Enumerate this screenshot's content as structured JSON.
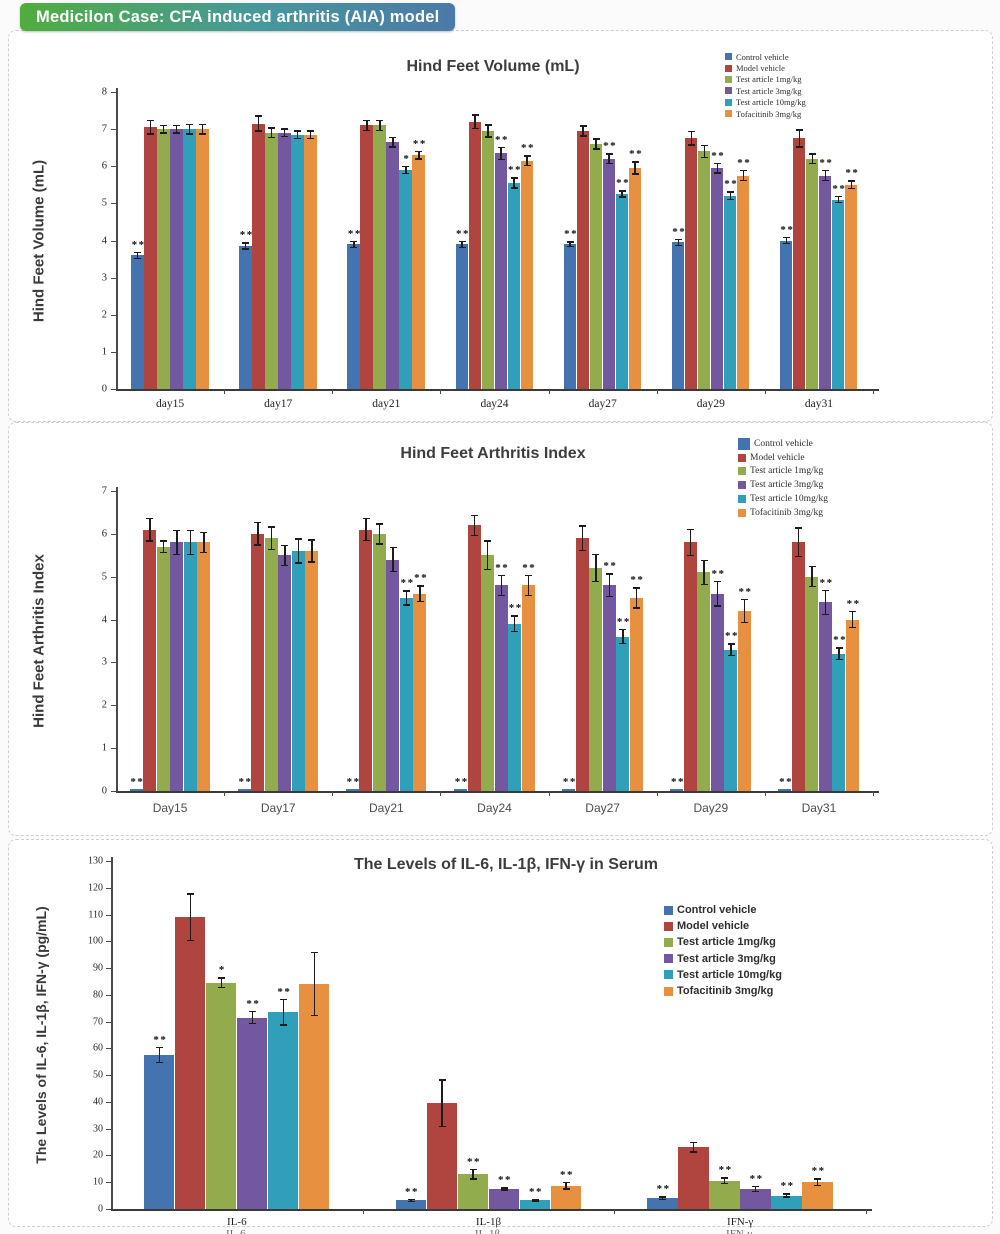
{
  "banner": {
    "text": "Medicilon Case: CFA induced arthritis (AIA) model"
  },
  "palette": {
    "control": "#4474b0",
    "model": "#b04540",
    "test1": "#92ac4d",
    "test3": "#73589f",
    "test10": "#2f9fba",
    "tofacitinib": "#e79140",
    "banner_green": "#4fad3e",
    "banner_blue": "#4b79a8"
  },
  "chart_data": [
    {
      "type": "bar",
      "title": "Hind Feet Volume (mL)",
      "ylabel": "Hind Feet Volume (mL)",
      "ylim": [
        0,
        8
      ],
      "ystep": 1,
      "grid": false,
      "legend_position": "top-right",
      "categories": [
        "day15",
        "day17",
        "day21",
        "day24",
        "day27",
        "day29",
        "day31"
      ],
      "series": [
        {
          "name": "Control vehicle",
          "color": "#4474b0",
          "values": [
            3.6,
            3.85,
            3.9,
            3.9,
            3.9,
            3.95,
            4.0
          ],
          "errors": [
            0.1,
            0.1,
            0.1,
            0.1,
            0.08,
            0.1,
            0.1
          ],
          "sig": [
            "**",
            "**",
            "**",
            "**",
            "**",
            "**",
            "**"
          ]
        },
        {
          "name": "Model vehicle",
          "color": "#b04540",
          "values": [
            7.05,
            7.15,
            7.1,
            7.2,
            6.95,
            6.75,
            6.75
          ],
          "errors": [
            0.2,
            0.22,
            0.15,
            0.2,
            0.15,
            0.2,
            0.25
          ],
          "sig": [
            "",
            "",
            "",
            "",
            "",
            "",
            ""
          ]
        },
        {
          "name": "Test article 1mg/kg",
          "color": "#92ac4d",
          "values": [
            7.0,
            6.9,
            7.1,
            6.95,
            6.6,
            6.4,
            6.2
          ],
          "errors": [
            0.12,
            0.15,
            0.15,
            0.18,
            0.15,
            0.18,
            0.15
          ],
          "sig": [
            "",
            "",
            "",
            "",
            "",
            "",
            ""
          ]
        },
        {
          "name": "Test article 3mg/kg",
          "color": "#73589f",
          "values": [
            7.0,
            6.9,
            6.65,
            6.35,
            6.2,
            5.95,
            5.75
          ],
          "errors": [
            0.12,
            0.12,
            0.15,
            0.18,
            0.15,
            0.15,
            0.15
          ],
          "sig": [
            "",
            "",
            "",
            "**",
            "**",
            "**",
            "**"
          ]
        },
        {
          "name": "Test article 10mg/kg",
          "color": "#2f9fba",
          "values": [
            7.0,
            6.85,
            5.9,
            5.55,
            5.25,
            5.2,
            5.1
          ],
          "errors": [
            0.15,
            0.12,
            0.12,
            0.15,
            0.1,
            0.12,
            0.1
          ],
          "sig": [
            "",
            "",
            "*",
            "**",
            "**",
            "**",
            "**"
          ]
        },
        {
          "name": "Tofacitinib 3mg/kg",
          "color": "#e79140",
          "values": [
            7.0,
            6.85,
            6.3,
            6.15,
            5.95,
            5.75,
            5.5
          ],
          "errors": [
            0.15,
            0.12,
            0.12,
            0.15,
            0.18,
            0.15,
            0.12
          ],
          "sig": [
            "",
            "",
            "**",
            "**",
            "**",
            "**",
            "**"
          ]
        }
      ]
    },
    {
      "type": "bar",
      "title": "Hind Feet Arthritis Index",
      "ylabel": "Hind Feet Arthritis Index",
      "ylim": [
        0,
        7
      ],
      "ystep": 1,
      "grid": false,
      "legend_position": "top-right",
      "categories": [
        "Day15",
        "Day17",
        "Day21",
        "Day24",
        "Day27",
        "Day29",
        "Day31"
      ],
      "series": [
        {
          "name": "Control vehicle",
          "color": "#4474b0",
          "values": [
            0.05,
            0.05,
            0.05,
            0.05,
            0.05,
            0.05,
            0.05
          ],
          "errors": [
            0,
            0,
            0,
            0,
            0,
            0,
            0
          ],
          "sig": [
            "**",
            "**",
            "**",
            "**",
            "**",
            "**",
            "**"
          ]
        },
        {
          "name": "Model vehicle",
          "color": "#b04540",
          "values": [
            6.1,
            6.0,
            6.1,
            6.2,
            5.9,
            5.8,
            5.8
          ],
          "errors": [
            0.28,
            0.28,
            0.27,
            0.25,
            0.3,
            0.32,
            0.35
          ],
          "sig": [
            "",
            "",
            "",
            "",
            "",
            "",
            ""
          ]
        },
        {
          "name": "Test article 1mg/kg",
          "color": "#92ac4d",
          "values": [
            5.7,
            5.9,
            6.0,
            5.5,
            5.2,
            5.1,
            5.0
          ],
          "errors": [
            0.15,
            0.28,
            0.25,
            0.35,
            0.33,
            0.3,
            0.25
          ],
          "sig": [
            "",
            "",
            "",
            "",
            "",
            "",
            ""
          ]
        },
        {
          "name": "Test article 3mg/kg",
          "color": "#73589f",
          "values": [
            5.8,
            5.5,
            5.4,
            4.8,
            4.8,
            4.6,
            4.4
          ],
          "errors": [
            0.3,
            0.25,
            0.3,
            0.25,
            0.28,
            0.3,
            0.3
          ],
          "sig": [
            "",
            "",
            "",
            "**",
            "**",
            "**",
            "**"
          ]
        },
        {
          "name": "Test article 10mg/kg",
          "color": "#2f9fba",
          "values": [
            5.8,
            5.6,
            4.5,
            3.9,
            3.6,
            3.3,
            3.2
          ],
          "errors": [
            0.3,
            0.3,
            0.18,
            0.2,
            0.18,
            0.15,
            0.15
          ],
          "sig": [
            "",
            "",
            "**",
            "**",
            "**",
            "**",
            "**"
          ]
        },
        {
          "name": "Tofacitinib 3mg/kg",
          "color": "#e79140",
          "values": [
            5.8,
            5.6,
            4.6,
            4.8,
            4.5,
            4.2,
            4.0
          ],
          "errors": [
            0.25,
            0.27,
            0.2,
            0.25,
            0.25,
            0.28,
            0.2
          ],
          "sig": [
            "",
            "",
            "**",
            "**",
            "**",
            "**",
            "**"
          ]
        }
      ]
    },
    {
      "type": "bar",
      "title": "The Levels of IL-6, IL-1β, IFN-γ in Serum",
      "ylabel": "The Levels of IL-6, IL-1β, IFN-γ  (pg/mL)",
      "ylim": [
        0,
        130
      ],
      "ystep": 10,
      "grid": false,
      "legend_position": "middle-right",
      "categories": [
        "IL-6",
        "IL-1β",
        "IFN-γ"
      ],
      "series": [
        {
          "name": "Control vehicle",
          "color": "#4474b0",
          "values": [
            57.5,
            3.2,
            4.0
          ],
          "errors": [
            3,
            0.7,
            0.8
          ],
          "sig": [
            "**",
            "**",
            "**"
          ]
        },
        {
          "name": "Model vehicle",
          "color": "#b04540",
          "values": [
            109,
            39.5,
            23
          ],
          "errors": [
            9,
            9,
            2
          ],
          "sig": [
            "",
            "",
            ""
          ]
        },
        {
          "name": "Test article 1mg/kg",
          "color": "#92ac4d",
          "values": [
            84.5,
            13,
            10.5
          ],
          "errors": [
            2,
            2,
            1.3
          ],
          "sig": [
            "*",
            "**",
            "**"
          ]
        },
        {
          "name": "Test article 3mg/kg",
          "color": "#73589f",
          "values": [
            71.5,
            7.5,
            7.5
          ],
          "errors": [
            2.5,
            0.6,
            1.2
          ],
          "sig": [
            "**",
            "**",
            "**"
          ]
        },
        {
          "name": "Test article 10mg/kg",
          "color": "#2f9fba",
          "values": [
            73.5,
            3.3,
            5
          ],
          "errors": [
            5,
            0.6,
            0.8
          ],
          "sig": [
            "**",
            "**",
            "**"
          ]
        },
        {
          "name": "Tofacitinib 3mg/kg",
          "color": "#e79140",
          "values": [
            84,
            8.7,
            10
          ],
          "errors": [
            12,
            1.5,
            1.5
          ],
          "sig": [
            "",
            "**",
            "**"
          ]
        }
      ]
    }
  ]
}
